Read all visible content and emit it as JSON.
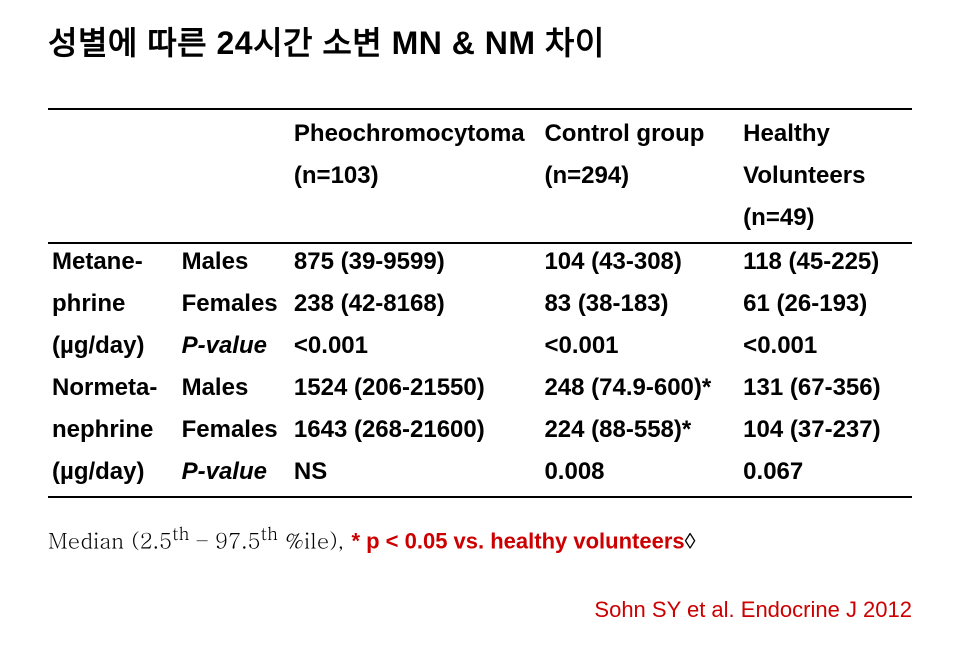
{
  "title": "성별에 따른 24시간 소변 MN & NM 차이",
  "header": {
    "c3_top": "Pheochromocytoma",
    "c3_bot": "(n=103)",
    "c4_top": "Control group",
    "c4_bot": "(n=294)",
    "c5_top": "Healthy",
    "c5_mid": "Volunteers",
    "c5_bot": "(n=49)"
  },
  "rows": {
    "r1": {
      "c1": "Metane-",
      "c2": "Males",
      "c3": "875 (39-9599)",
      "c4": "104 (43-308)",
      "c5": "118 (45-225)"
    },
    "r2": {
      "c1": "phrine",
      "c2": "Females",
      "c3": "238 (42-8168)",
      "c4": "83 (38-183)",
      "c5": "61 (26-193)"
    },
    "r3": {
      "c1": "(µg/day)",
      "c2": "P-value",
      "c3": "<0.001",
      "c4": "<0.001",
      "c5": "<0.001"
    },
    "r4": {
      "c1": "Normeta-",
      "c2": "Males",
      "c3": "1524 (206-21550)",
      "c4": "248 (74.9-600)*",
      "c5": "131 (67-356)"
    },
    "r5": {
      "c1": "nephrine",
      "c2": "Females",
      "c3": "1643 (268-21600)",
      "c4": "224 (88-558)*",
      "c5": "104 (37-237)"
    },
    "r6": {
      "c1": "(µg/day)",
      "c2": "P-value",
      "c3": "NS",
      "c4": "0.008",
      "c5": "0.067"
    }
  },
  "footnote": {
    "prefix": "Median (2.5",
    "th1": "th",
    "mid": " – 97.5",
    "th2": "th",
    "ile": " %ile), ",
    "sig": "* p < 0.05 vs. healthy volunteers",
    "sym": "◊"
  },
  "citation": "Sohn SY et al. Endocrine J 2012"
}
